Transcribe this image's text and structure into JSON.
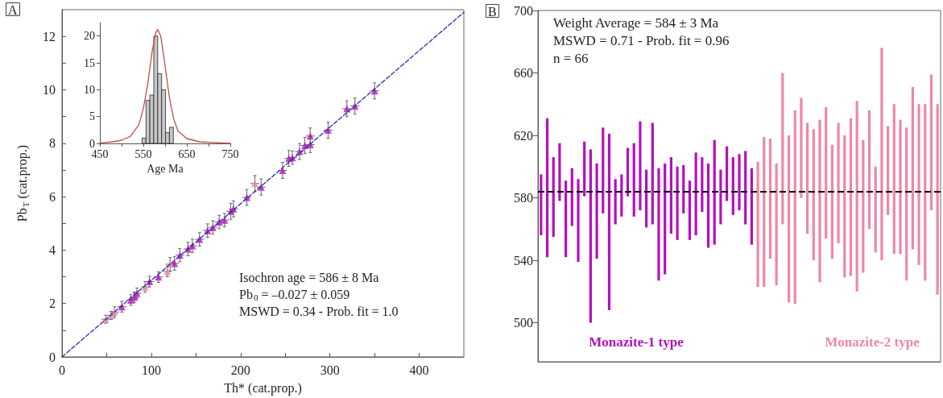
{
  "chart_data": [
    {
      "type": "scatter",
      "title": "A",
      "xlabel": "Th* (cat.prop.)",
      "ylabel": "Pb$_{T}$ (cat.prop.)",
      "xlim": [
        0,
        450
      ],
      "ylim": [
        0,
        13
      ],
      "xticks": [
        0,
        {
          "value": 50,
          "label": null
        },
        100,
        {
          "value": 150,
          "label": null
        },
        200,
        {
          "value": 250,
          "label": null
        },
        300,
        {
          "value": 350,
          "label": null
        },
        400
      ],
      "yticks": [
        0,
        {
          "value": 1,
          "label": null
        },
        2,
        {
          "value": 3,
          "label": null
        },
        4,
        {
          "value": 5,
          "label": null
        },
        6,
        {
          "value": 7,
          "label": null
        },
        8,
        {
          "value": 9,
          "label": null
        },
        10,
        {
          "value": 11,
          "label": null
        },
        12
      ],
      "marker": "triangle",
      "line_style": "dashed",
      "annotations": [
        "Isochron age = 586 ± 8 Ma",
        "Pb$_{0}$ = –0.027 ± 0.059",
        "MSWD = 0.34 - Prob. fit = 1.0"
      ],
      "series": [
        {
          "color": "#b21cb8",
          "x": [
            67,
            77,
            81,
            84,
            98,
            108,
            126,
            132,
            141,
            146,
            154,
            163,
            169,
            176,
            182,
            189,
            192,
            207,
            223,
            247,
            254,
            258,
            266,
            272,
            278,
            278,
            298,
            319,
            328,
            350
          ],
          "values": [
            1.88,
            2.13,
            2.23,
            2.38,
            2.82,
            2.99,
            3.5,
            3.81,
            4.04,
            4.16,
            4.4,
            4.73,
            4.85,
            5.05,
            5.12,
            5.45,
            5.54,
            5.97,
            6.36,
            6.98,
            7.43,
            7.46,
            7.69,
            7.92,
            7.95,
            8.27,
            8.49,
            9.29,
            9.39,
            9.96
          ],
          "errors": [
            0.2,
            0.2,
            0.2,
            0.2,
            0.2,
            0.2,
            0.25,
            0.25,
            0.25,
            0.25,
            0.25,
            0.25,
            0.25,
            0.25,
            0.25,
            0.3,
            0.3,
            0.3,
            0.3,
            0.3,
            0.3,
            0.25,
            0.3,
            0.3,
            0.3,
            0.3,
            0.3,
            0.3,
            0.3,
            0.3
          ],
          "xerrors": [
            5,
            5,
            5,
            5,
            5,
            5,
            5,
            5,
            5,
            5,
            5,
            5,
            5,
            5,
            5,
            5,
            5,
            5,
            5,
            5,
            5,
            5,
            5,
            5,
            5,
            5,
            5,
            5,
            5,
            5
          ]
        },
        {
          "color": "#e78aa9",
          "x": [
            49,
            55,
            59,
            93,
            118,
            121,
            216
          ],
          "values": [
            1.41,
            1.55,
            1.68,
            2.62,
            3.2,
            3.47,
            6.49
          ],
          "errors": [
            0.15,
            0.15,
            0.2,
            0.2,
            0.2,
            0.25,
            0.3
          ],
          "xerrors": [
            5,
            5,
            5,
            5,
            5,
            5,
            5
          ]
        },
        {
          "type": "line",
          "marker": "none",
          "color": "#2b2bb0",
          "x": [
            0,
            450
          ],
          "values": [
            0,
            12.9
          ]
        }
      ]
    },
    {
      "type": "histogram",
      "xlabel": "Age Ma",
      "xlim": [
        450,
        750
      ],
      "ylim": [
        0,
        22.5
      ],
      "xticks": [
        450,
        {
          "value": 500,
          "label": null
        },
        550,
        {
          "value": 600,
          "label": null
        },
        650,
        {
          "value": 700,
          "label": null
        },
        750
      ],
      "yticks": [
        0,
        5,
        10,
        15,
        20
      ],
      "bins": [
        547,
        556,
        565,
        574,
        583,
        592,
        601,
        610,
        619
      ],
      "values": [
        1,
        8,
        9,
        20,
        13,
        10,
        2,
        3
      ],
      "color": "#c8c8c8",
      "series": [
        {
          "type": "line",
          "color": "#c0504d",
          "x": [
            450,
            480,
            500,
            520,
            540,
            550,
            560,
            570,
            578,
            583,
            590,
            600,
            610,
            620,
            630,
            650,
            680,
            700,
            750
          ],
          "values": [
            0.1,
            0.3,
            0.6,
            1.3,
            3.5,
            6.5,
            11,
            17,
            20.5,
            21.2,
            20,
            14.5,
            8.5,
            4.5,
            2.3,
            0.9,
            0.3,
            0.2,
            0
          ]
        }
      ]
    },
    {
      "type": "bar",
      "title": "B",
      "categories": [
        null,
        null,
        null,
        null,
        null,
        null,
        null,
        null,
        null,
        null,
        null,
        null,
        null,
        null,
        null,
        null,
        null,
        null,
        null,
        null,
        null,
        null,
        null,
        null,
        null,
        null,
        null,
        null,
        null,
        null,
        null,
        null,
        null,
        null,
        null,
        null,
        null,
        null,
        null,
        null,
        null,
        null,
        null,
        null,
        null,
        null,
        null,
        null,
        null,
        null,
        null,
        null,
        null,
        null,
        null,
        null,
        null,
        null,
        null,
        null,
        null,
        null,
        null,
        null,
        null
      ],
      "ylim": [
        475,
        700
      ],
      "yticks": [
        500,
        540,
        580,
        620,
        660,
        700
      ],
      "tick_labels": "y",
      "ref_lines": [
        {
          "axis": "y",
          "value": 584,
          "color": "#000000",
          "line_style": "dashed"
        }
      ],
      "annotations": [
        "Weight Average = 584 ± 3 Ma",
        "MSWD = 0.71 - Prob. fit = 0.96",
        "n = 66"
      ],
      "series": [
        {
          "name": "Monazite-1 type",
          "color": "#b40fbe",
          "base": [
            556,
            542,
            555,
            578,
            542,
            562,
            539,
            581,
            500,
            541,
            570,
            508,
            563,
            568,
            581,
            568,
            572,
            561,
            563,
            527,
            531,
            557,
            553,
            570,
            553,
            556,
            571,
            548,
            550,
            563,
            578,
            569,
            572,
            563,
            550,
            null,
            null,
            null,
            null,
            null,
            null,
            null,
            null,
            null,
            null,
            null,
            null,
            null,
            null,
            null,
            null,
            null,
            null,
            null,
            null,
            null,
            null,
            null,
            null,
            null,
            null,
            null,
            null,
            null,
            null
          ],
          "values": [
            39,
            89,
            51,
            37,
            49,
            37,
            53,
            35,
            111,
            61,
            55,
            113,
            29,
            27,
            31,
            47,
            57,
            37,
            65,
            72,
            71,
            49,
            47,
            31,
            38,
            53,
            35,
            54,
            67,
            35,
            35,
            37,
            36,
            47,
            49,
            null,
            null,
            null,
            null,
            null,
            null,
            null,
            null,
            null,
            null,
            null,
            null,
            null,
            null,
            null,
            null,
            null,
            null,
            null,
            null,
            null,
            null,
            null,
            null,
            null,
            null,
            null,
            null,
            null,
            null
          ]
        },
        {
          "name": "Monazite-2 type",
          "color": "#ef86a8",
          "base": [
            null,
            null,
            null,
            null,
            null,
            null,
            null,
            null,
            null,
            null,
            null,
            null,
            null,
            null,
            null,
            null,
            null,
            null,
            null,
            null,
            null,
            null,
            null,
            null,
            null,
            null,
            null,
            null,
            null,
            null,
            null,
            null,
            null,
            null,
            null,
            523,
            523,
            541,
            524,
            563,
            513,
            512,
            580,
            557,
            540,
            526,
            554,
            541,
            551,
            529,
            530,
            520,
            532,
            560,
            545,
            540,
            569,
            544,
            544,
            527,
            547,
            537,
            527,
            572,
            518
          ],
          "values": [
            null,
            null,
            null,
            null,
            null,
            null,
            null,
            null,
            null,
            null,
            null,
            null,
            null,
            null,
            null,
            null,
            null,
            null,
            null,
            null,
            null,
            null,
            null,
            null,
            null,
            null,
            null,
            null,
            null,
            null,
            null,
            null,
            null,
            null,
            null,
            80,
            96,
            77,
            78,
            97,
            107,
            124,
            64,
            71,
            84,
            104,
            84,
            73,
            77,
            91,
            101,
            122,
            85,
            76,
            55,
            136,
            57,
            96,
            86,
            98,
            104,
            103,
            113,
            87,
            122
          ]
        }
      ]
    }
  ]
}
